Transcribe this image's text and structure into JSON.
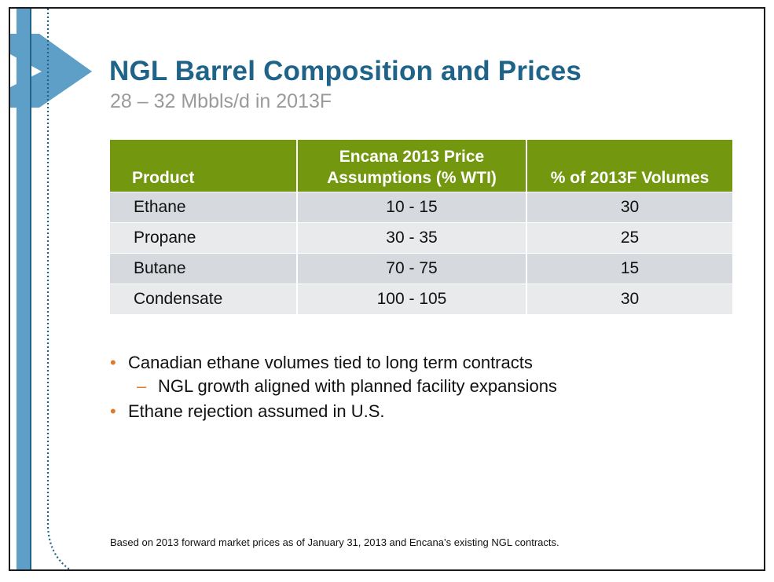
{
  "title": "NGL Barrel Composition and Prices",
  "subtitle": "28 – 32 Mbbls/d in 2013F",
  "table": {
    "headers": [
      "Product",
      "Encana 2013 Price Assumptions (% WTI)",
      "% of 2013F Volumes"
    ],
    "header_lines": {
      "col1": "Product",
      "col2_line1": "Encana 2013 Price",
      "col2_line2": "Assumptions (% WTI)",
      "col3": "% of 2013F Volumes"
    },
    "rows": [
      [
        "Ethane",
        "10 - 15",
        "30"
      ],
      [
        "Propane",
        "30 - 35",
        "25"
      ],
      [
        "Butane",
        "70 - 75",
        "15"
      ],
      [
        "Condensate",
        "100 - 105",
        "30"
      ]
    ]
  },
  "bullets": [
    {
      "marker": "•",
      "text": "Canadian ethane volumes tied to long term contracts"
    },
    {
      "marker": "–",
      "text": "NGL growth aligned with planned facility expansions"
    },
    {
      "marker": "•",
      "text": "Ethane rejection assumed in U.S."
    }
  ],
  "footnote": "Based on 2013 forward market prices as of January 31, 2013 and Encana’s existing NGL contracts.",
  "colors": {
    "title": "#1f6389",
    "subtitle": "#9a9a9a",
    "header_bg": "#73970f",
    "row_dark": "#d6d9dd",
    "row_light": "#e9eaec",
    "accent_blue": "#5d9fc6",
    "bullet": "#e07a2a"
  }
}
